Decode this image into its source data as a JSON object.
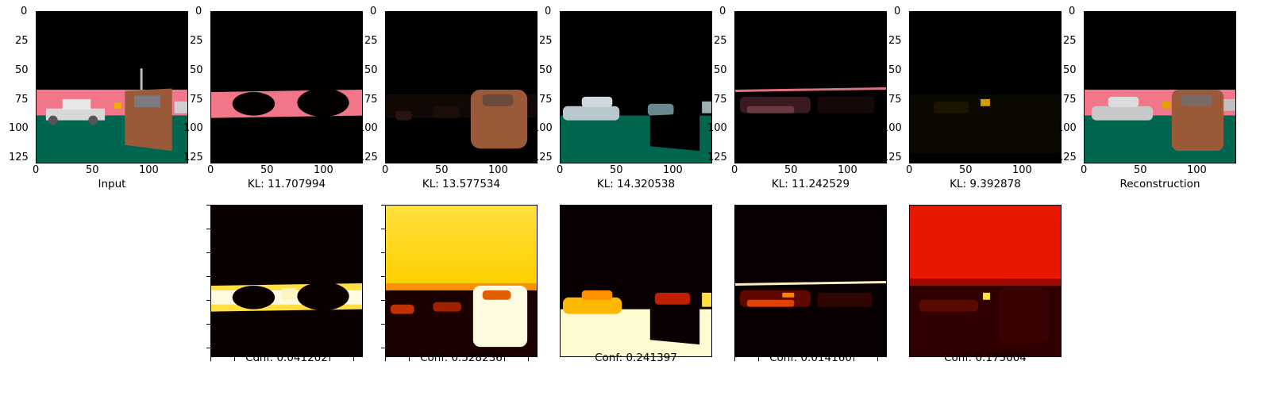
{
  "axes": {
    "y_ticks": [
      "0",
      "25",
      "50",
      "75",
      "100",
      "125"
    ],
    "x_ticks": [
      "0",
      "50",
      "100"
    ]
  },
  "top_row": [
    {
      "caption": "Input"
    },
    {
      "caption": "KL: 11.707994"
    },
    {
      "caption": "KL: 13.577534"
    },
    {
      "caption": "KL: 14.320538"
    },
    {
      "caption": "KL: 11.242529"
    },
    {
      "caption": "KL: 9.392878"
    },
    {
      "caption": "Reconstruction"
    }
  ],
  "bottom_row": [
    {
      "caption": "Conf: 0.041202"
    },
    {
      "caption": "Conf: 0.528236"
    },
    {
      "caption": "Conf: 0.241397"
    },
    {
      "caption": "Conf: 0.014160"
    },
    {
      "caption": "Conf: 0.175004"
    }
  ],
  "colors": {
    "sky": "#000000",
    "wall_pink": "#f2768a",
    "floor_green": "#006650",
    "box_brown": "#9a5a3a",
    "car_white": "#d8d8d8",
    "heat_dark": "#1a0000",
    "heat_red": "#d01000",
    "heat_yellow": "#ffe040",
    "heat_white": "#ffffe0"
  }
}
